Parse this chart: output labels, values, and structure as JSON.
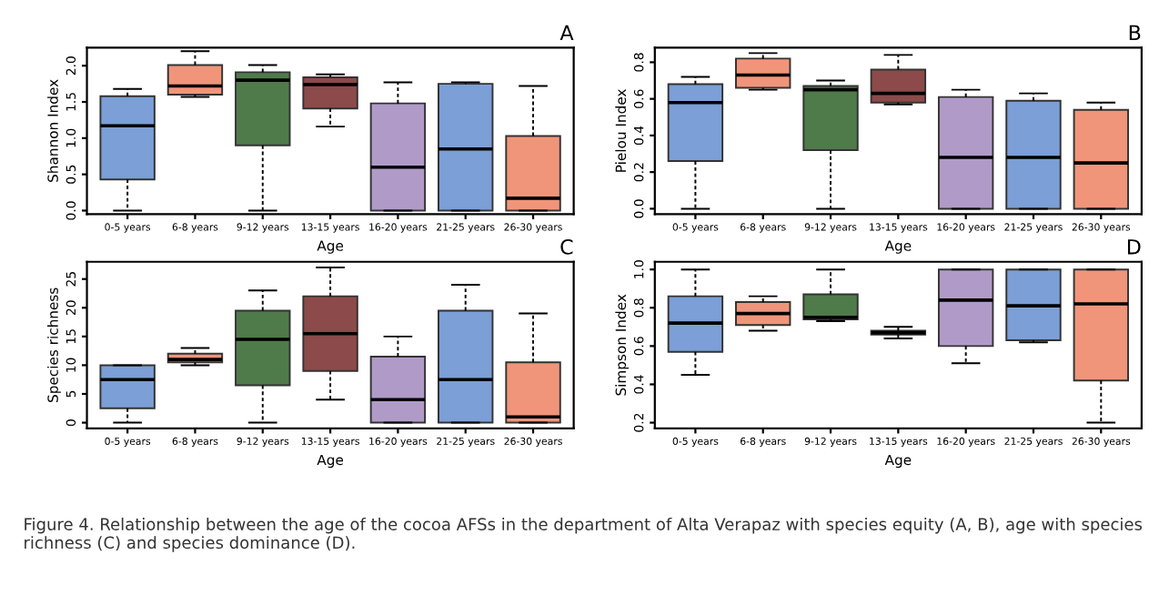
{
  "chart_data": [
    {
      "type": "box",
      "title": "A",
      "xlabel": "Age",
      "ylabel": "Shannon Index",
      "categories": [
        "0-5 years",
        "6-8 years",
        "9-12 years",
        "13-15 years",
        "16-20 years",
        "21-25 years",
        "26-30 years"
      ],
      "colors": [
        "#7b9fd6",
        "#f0957a",
        "#4f7a4a",
        "#8c4a4a",
        "#b09bc8",
        "#7b9fd6",
        "#f0957a"
      ],
      "ylim": [
        -0.05,
        2.25
      ],
      "yticks": [
        {
          "value": 0,
          "label": "0.0"
        },
        0.5,
        {
          "value": 1,
          "label": "1.0"
        },
        1.5,
        {
          "value": 2,
          "label": "2.0"
        }
      ],
      "grid": false,
      "boxes": [
        {
          "low": 0,
          "q1": 0.43,
          "median": 1.17,
          "q3": 1.58,
          "high": 1.68
        },
        {
          "low": 1.57,
          "q1": 1.6,
          "median": 1.72,
          "q3": 2.01,
          "high": 2.2
        },
        {
          "low": 0,
          "q1": 0.9,
          "median": 1.8,
          "q3": 1.91,
          "high": 2.01
        },
        {
          "low": 1.16,
          "q1": 1.41,
          "median": 1.74,
          "q3": 1.84,
          "high": 1.88
        },
        {
          "low": 0,
          "q1": 0,
          "median": 0.6,
          "q3": 1.48,
          "high": 1.77
        },
        {
          "low": 0,
          "q1": 0,
          "median": 0.85,
          "q3": 1.75,
          "high": 1.77
        },
        {
          "low": 0,
          "q1": 0,
          "median": 0.17,
          "q3": 1.03,
          "high": 1.72
        }
      ]
    },
    {
      "type": "box",
      "title": "B",
      "xlabel": "Age",
      "ylabel": "Pielou Index",
      "categories": [
        "0-5 years",
        "6-8 years",
        "9-12 years",
        "13-15 years",
        "16-20 years",
        "21-25 years",
        "26-30 years"
      ],
      "colors": [
        "#7b9fd6",
        "#f0957a",
        "#4f7a4a",
        "#8c4a4a",
        "#b09bc8",
        "#7b9fd6",
        "#f0957a"
      ],
      "ylim": [
        -0.03,
        0.88
      ],
      "yticks": [
        {
          "value": 0,
          "label": "0.0"
        },
        0.2,
        0.4,
        0.6,
        0.8
      ],
      "grid": false,
      "boxes": [
        {
          "low": 0,
          "q1": 0.26,
          "median": 0.58,
          "q3": 0.68,
          "high": 0.72
        },
        {
          "low": 0.65,
          "q1": 0.66,
          "median": 0.73,
          "q3": 0.82,
          "high": 0.85
        },
        {
          "low": 0,
          "q1": 0.32,
          "median": 0.65,
          "q3": 0.67,
          "high": 0.7
        },
        {
          "low": 0.57,
          "q1": 0.58,
          "median": 0.63,
          "q3": 0.76,
          "high": 0.84
        },
        {
          "low": 0,
          "q1": 0,
          "median": 0.28,
          "q3": 0.61,
          "high": 0.65
        },
        {
          "low": 0,
          "q1": 0,
          "median": 0.28,
          "q3": 0.59,
          "high": 0.63
        },
        {
          "low": 0,
          "q1": 0,
          "median": 0.25,
          "q3": 0.54,
          "high": 0.58
        }
      ]
    },
    {
      "type": "box",
      "title": "C",
      "xlabel": "Age",
      "ylabel": "Species richness",
      "categories": [
        "0-5 years",
        "6-8 years",
        "9-12 years",
        "13-15 years",
        "16-20 years",
        "21-25 years",
        "26-30 years"
      ],
      "colors": [
        "#7b9fd6",
        "#f0957a",
        "#4f7a4a",
        "#8c4a4a",
        "#b09bc8",
        "#7b9fd6",
        "#f0957a"
      ],
      "ylim": [
        -1,
        28
      ],
      "yticks": [
        0,
        5,
        10,
        15,
        20,
        25
      ],
      "grid": false,
      "boxes": [
        {
          "low": 0,
          "q1": 2.5,
          "median": 7.5,
          "q3": 10,
          "high": 10
        },
        {
          "low": 10,
          "q1": 10.5,
          "median": 11,
          "q3": 12,
          "high": 13
        },
        {
          "low": 0,
          "q1": 6.5,
          "median": 14.5,
          "q3": 19.5,
          "high": 23
        },
        {
          "low": 4,
          "q1": 9,
          "median": 15.5,
          "q3": 22,
          "high": 27
        },
        {
          "low": 0,
          "q1": 0,
          "median": 4,
          "q3": 11.5,
          "high": 15
        },
        {
          "low": 0,
          "q1": 0,
          "median": 7.5,
          "q3": 19.5,
          "high": 24
        },
        {
          "low": 0,
          "q1": 0,
          "median": 1,
          "q3": 10.5,
          "high": 19
        }
      ]
    },
    {
      "type": "box",
      "title": "D",
      "xlabel": "Age",
      "ylabel": "Simpson Index",
      "categories": [
        "0-5 years",
        "6-8 years",
        "9-12 years",
        "13-15 years",
        "16-20 years",
        "21-25 years",
        "26-30 years"
      ],
      "colors": [
        "#7b9fd6",
        "#f0957a",
        "#4f7a4a",
        "#8c4a4a",
        "#b09bc8",
        "#7b9fd6",
        "#f0957a"
      ],
      "ylim": [
        0.17,
        1.04
      ],
      "yticks": [
        0.2,
        0.4,
        0.6,
        0.8,
        {
          "value": 1,
          "label": "1.0"
        }
      ],
      "grid": false,
      "boxes": [
        {
          "low": 0.45,
          "q1": 0.57,
          "median": 0.72,
          "q3": 0.86,
          "high": 1.0
        },
        {
          "low": 0.68,
          "q1": 0.71,
          "median": 0.77,
          "q3": 0.83,
          "high": 0.86
        },
        {
          "low": 0.73,
          "q1": 0.74,
          "median": 0.75,
          "q3": 0.87,
          "high": 1.0
        },
        {
          "low": 0.64,
          "q1": 0.66,
          "median": 0.67,
          "q3": 0.68,
          "high": 0.7
        },
        {
          "low": 0.51,
          "q1": 0.6,
          "median": 0.84,
          "q3": 1.0,
          "high": 1.0
        },
        {
          "low": 0.62,
          "q1": 0.63,
          "median": 0.81,
          "q3": 1.0,
          "high": 1.0
        },
        {
          "low": 0.2,
          "q1": 0.42,
          "median": 0.82,
          "q3": 1.0,
          "high": 1.0
        }
      ],
      "annotations": [
        "Figure 4. Relationship between the age of the cocoa AFSs in the department of Alta Verapaz with species equity (A, B), age with species richness (C) and species dominance (D)."
      ]
    }
  ]
}
